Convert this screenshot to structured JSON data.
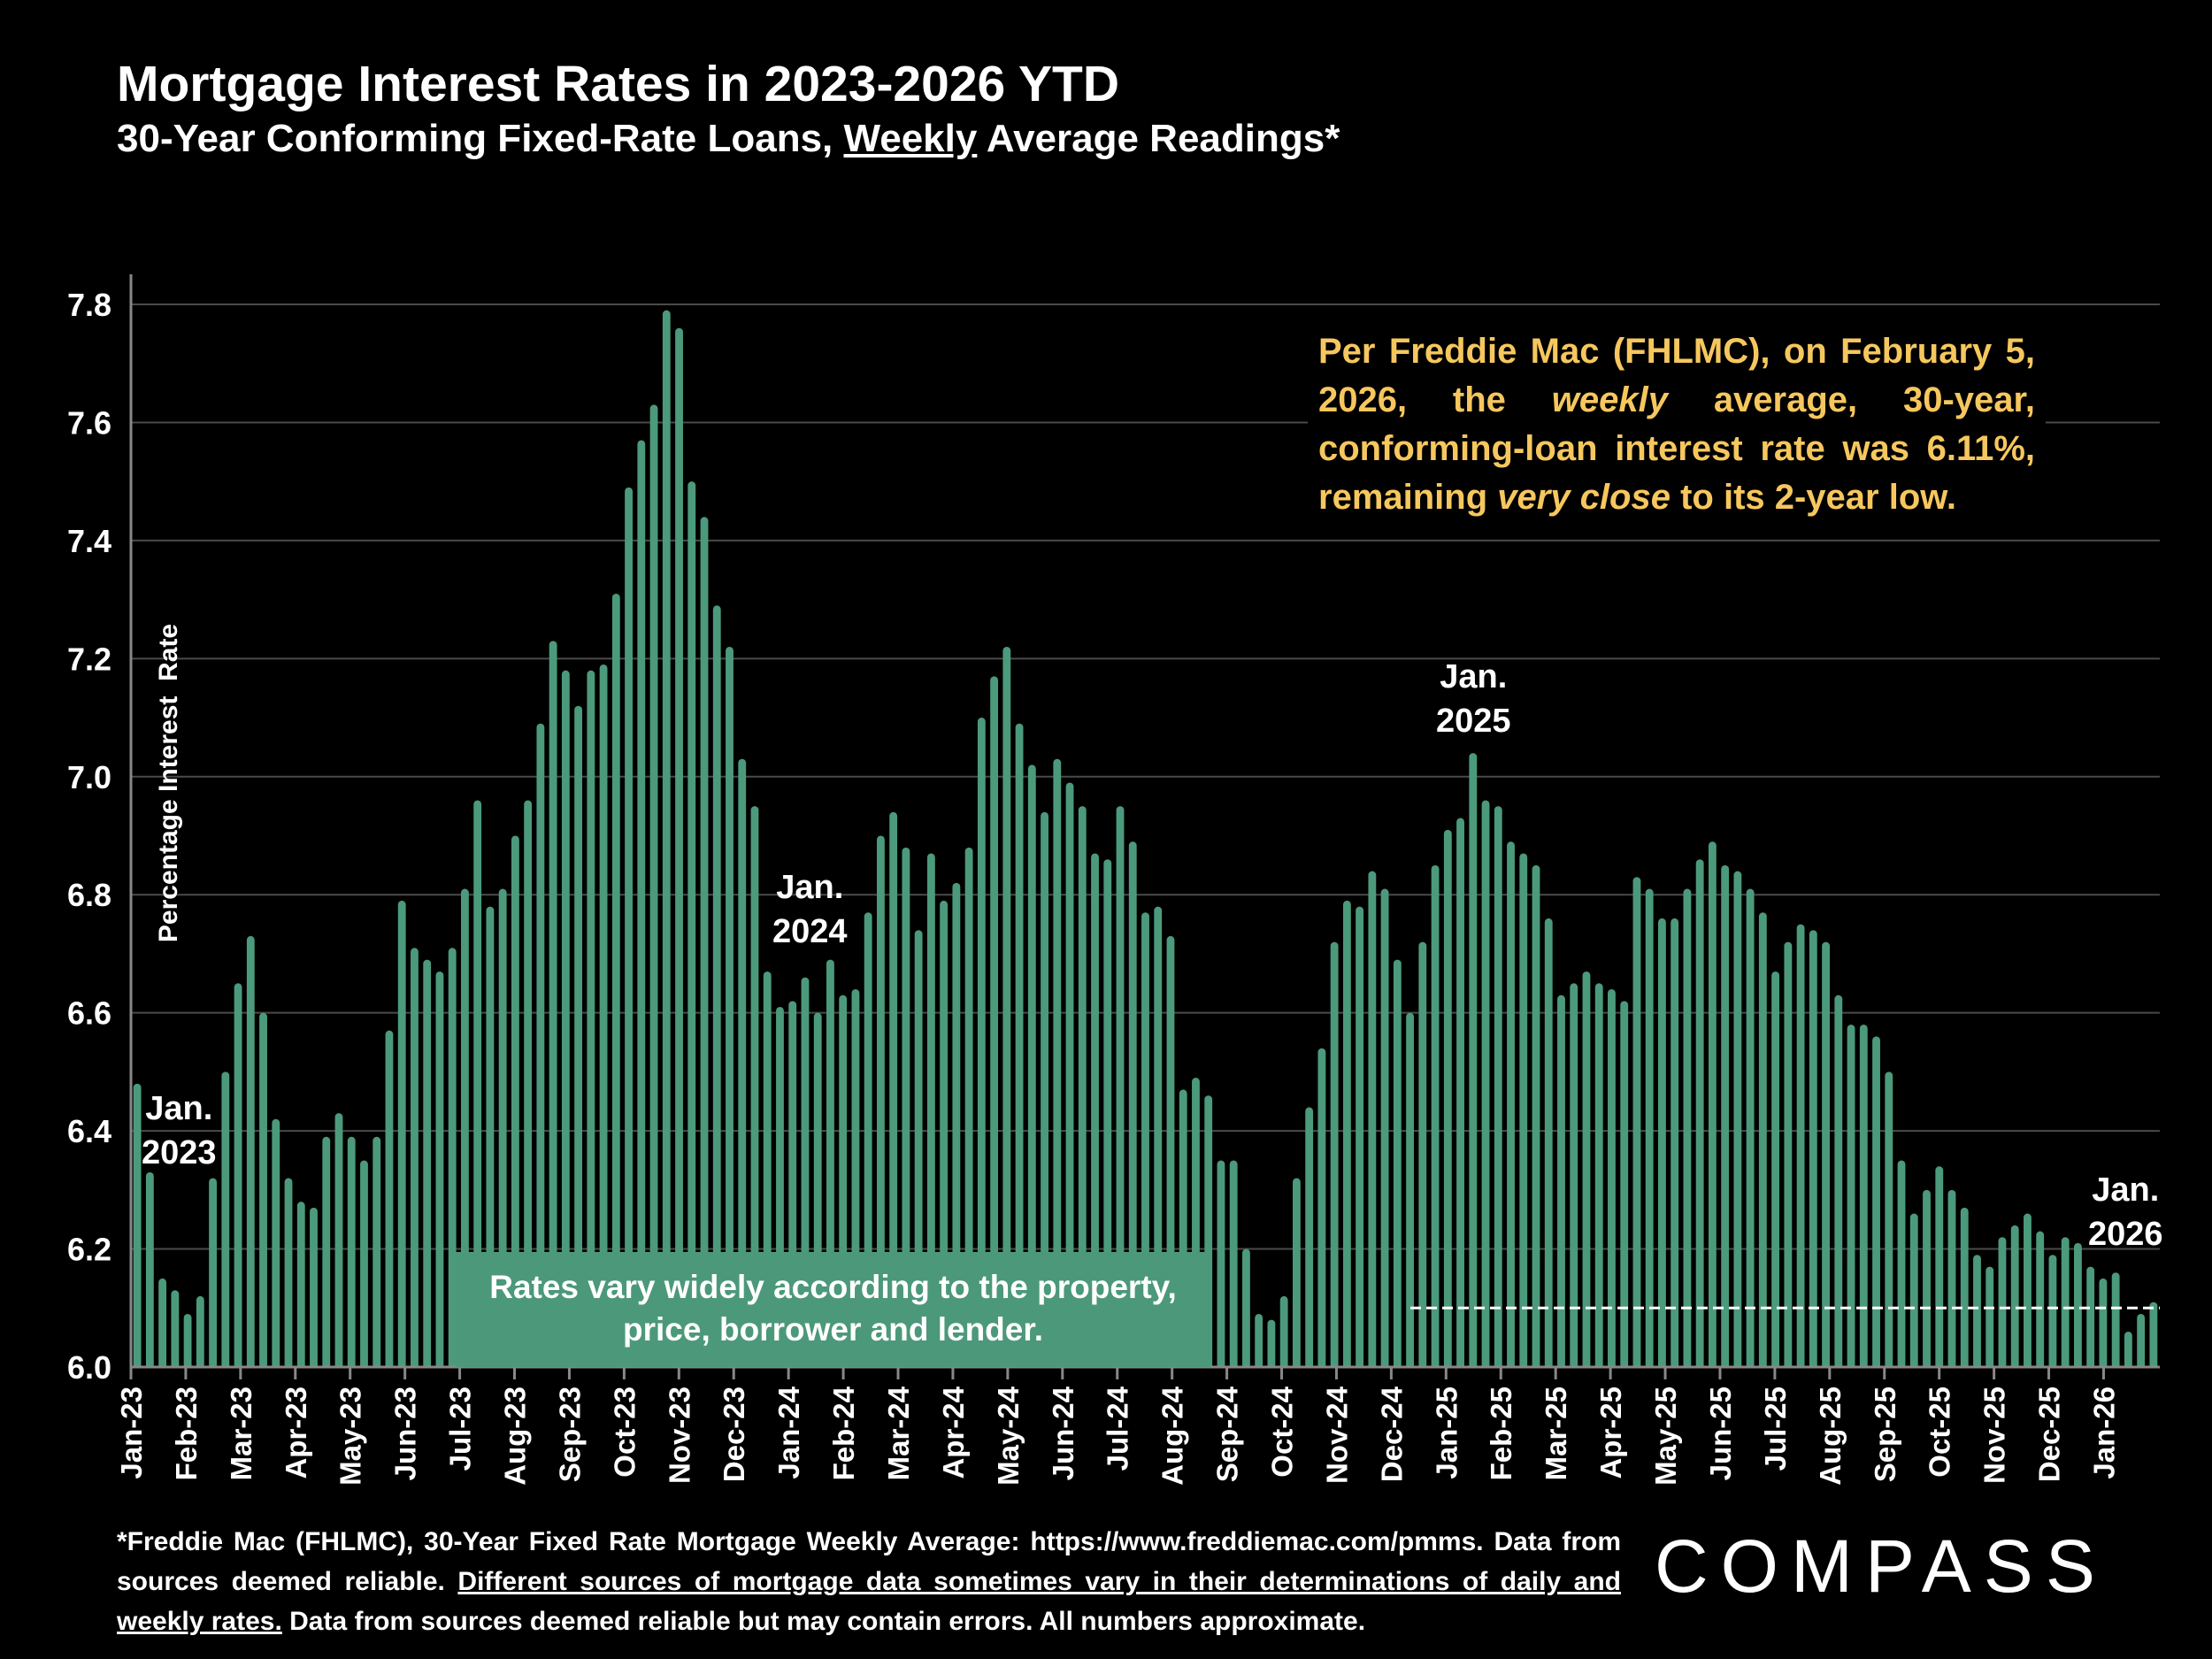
{
  "header": {
    "title": "Mortgage Interest Rates in 2023-2026 YTD",
    "subtitle_pre": "30-Year Conforming Fixed-Rate Loans, ",
    "subtitle_underlined": "Weekly",
    "subtitle_post": " Average Readings*"
  },
  "note": {
    "part1": "Per Freddie Mac (FHLMC), on February 5, 2026, the ",
    "italic1": "weekly",
    "part2": " average, 30-year, conforming-loan interest rate was 6.11%, remaining ",
    "italic2": "very close",
    "part3": " to its 2-year low."
  },
  "callout": "Rates vary widely according to the property, price, borrower and lender.",
  "annotations": {
    "jan2023": [
      "Jan.",
      "2023"
    ],
    "jan2024": [
      "Jan.",
      "2024"
    ],
    "jan2025": [
      "Jan.",
      "2025"
    ],
    "jan2026": [
      "Jan.",
      "2026"
    ]
  },
  "footer": {
    "line1": "*Freddie Mac (FHLMC), 30-Year Fixed Rate Mortgage Weekly Average:  https://www.freddiemac.com/pmms.",
    "line2_pre": "Data from sources deemed reliable. ",
    "underlined": "Different sources of mortgage data sometimes vary in their determinations of daily and weekly rates.",
    "post": " Data from sources deemed reliable but may contain errors. All numbers approximate."
  },
  "logo": "COMPASS",
  "colors": {
    "bar": "#4c9a7c",
    "note": "#f6c75e",
    "grid": "#4a4a4a",
    "background": "#000000"
  },
  "chart_data": {
    "type": "bar",
    "title": "Mortgage Interest Rates in 2023-2026 YTD",
    "ylabel": "Percentage Interest  Rate",
    "xlabel": "",
    "ylim": [
      6.0,
      7.85
    ],
    "yticks": [
      "6.0",
      "6.2",
      "6.4",
      "6.6",
      "6.8",
      "7.0",
      "7.2",
      "7.4",
      "7.6",
      "7.8"
    ],
    "grid": true,
    "x_tick_labels": [
      "Jan-23",
      "Feb-23",
      "Mar-23",
      "Apr-23",
      "May-23",
      "Jun-23",
      "Jul-23",
      "Aug-23",
      "Sep-23",
      "Oct-23",
      "Nov-23",
      "Dec-23",
      "Jan-24",
      "Feb-24",
      "Mar-24",
      "Apr-24",
      "May-24",
      "Jun-24",
      "Jul-24",
      "Aug-24",
      "Sep-24",
      "Oct-24",
      "Nov-24",
      "Dec-24",
      "Jan-25",
      "Feb-25",
      "Mar-25",
      "Apr-25",
      "May-25",
      "Jun-25",
      "Jul-25",
      "Aug-25",
      "Sep-25",
      "Oct-25",
      "Nov-25",
      "Dec-25",
      "Jan-26"
    ],
    "reference_line": 6.1,
    "values": [
      6.48,
      6.33,
      6.15,
      6.13,
      6.09,
      6.12,
      6.32,
      6.5,
      6.65,
      6.73,
      6.6,
      6.42,
      6.32,
      6.28,
      6.27,
      6.39,
      6.43,
      6.39,
      6.35,
      6.39,
      6.57,
      6.79,
      6.71,
      6.69,
      6.67,
      6.71,
      6.81,
      6.96,
      6.78,
      6.81,
      6.9,
      6.96,
      7.09,
      7.23,
      7.18,
      7.12,
      7.18,
      7.19,
      7.31,
      7.49,
      7.57,
      7.63,
      7.79,
      7.76,
      7.5,
      7.44,
      7.29,
      7.22,
      7.03,
      6.95,
      6.67,
      6.61,
      6.62,
      6.66,
      6.6,
      6.69,
      6.63,
      6.64,
      6.77,
      6.9,
      6.94,
      6.88,
      6.74,
      6.87,
      6.79,
      6.82,
      6.88,
      7.1,
      7.17,
      7.22,
      7.09,
      7.02,
      6.94,
      7.03,
      6.99,
      6.95,
      6.87,
      6.86,
      6.95,
      6.89,
      6.77,
      6.78,
      6.73,
      6.47,
      6.49,
      6.46,
      6.35,
      6.35,
      6.2,
      6.09,
      6.08,
      6.12,
      6.32,
      6.44,
      6.54,
      6.72,
      6.79,
      6.78,
      6.84,
      6.81,
      6.69,
      6.6,
      6.72,
      6.85,
      6.91,
      6.93,
      7.04,
      6.96,
      6.95,
      6.89,
      6.87,
      6.85,
      6.76,
      6.63,
      6.65,
      6.67,
      6.65,
      6.64,
      6.62,
      6.83,
      6.81,
      6.76,
      6.76,
      6.81,
      6.86,
      6.89,
      6.85,
      6.84,
      6.81,
      6.77,
      6.67,
      6.72,
      6.75,
      6.74,
      6.72,
      6.63,
      6.58,
      6.58,
      6.56,
      6.5,
      6.35,
      6.26,
      6.3,
      6.34,
      6.3,
      6.27,
      6.19,
      6.17,
      6.22,
      6.24,
      6.26,
      6.23,
      6.19,
      6.22,
      6.21,
      6.17,
      6.15,
      6.16,
      6.06,
      6.09,
      6.11
    ]
  }
}
